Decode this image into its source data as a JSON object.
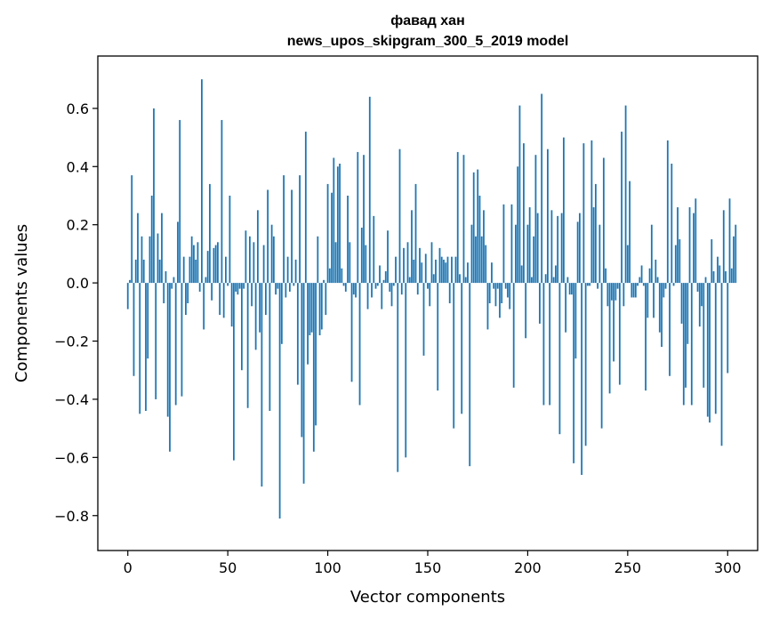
{
  "chart_data": {
    "type": "bar",
    "title_line1": "фавад хан",
    "title_line2": "news_upos_skipgram_300_5_2019 model",
    "xlabel": "Vector components",
    "ylabel": "Components values",
    "xlim": [
      -15,
      315
    ],
    "ylim": [
      -0.92,
      0.78
    ],
    "x_ticks": [
      0,
      50,
      100,
      150,
      200,
      250,
      300
    ],
    "x_tick_labels": [
      "0",
      "50",
      "100",
      "150",
      "200",
      "250",
      "300"
    ],
    "y_ticks": [
      -0.8,
      -0.6,
      -0.4,
      -0.2,
      0.0,
      0.2,
      0.4,
      0.6
    ],
    "y_tick_labels": [
      "−0.8",
      "−0.6",
      "−0.4",
      "−0.2",
      "0.0",
      "0.2",
      "0.4",
      "0.6"
    ],
    "bar_color": "#1f77b4",
    "grid": false,
    "values": [
      -0.09,
      0.01,
      0.37,
      -0.32,
      0.08,
      0.24,
      -0.45,
      0.16,
      0.08,
      -0.44,
      -0.26,
      0.16,
      0.3,
      0.6,
      -0.4,
      0.17,
      0.08,
      0.24,
      -0.07,
      0.04,
      -0.46,
      -0.58,
      -0.02,
      0.02,
      -0.42,
      0.21,
      0.56,
      -0.39,
      0.09,
      -0.11,
      -0.07,
      0.09,
      0.16,
      0.13,
      0.08,
      0.14,
      -0.03,
      0.7,
      -0.16,
      0.02,
      0.11,
      0.34,
      -0.06,
      0.12,
      0.13,
      0.14,
      -0.11,
      0.56,
      -0.12,
      0.09,
      -0.01,
      0.3,
      -0.15,
      -0.61,
      -0.03,
      -0.04,
      -0.02,
      -0.3,
      -0.02,
      0.18,
      -0.43,
      0.16,
      -0.08,
      0.14,
      -0.23,
      0.25,
      -0.17,
      -0.7,
      0.13,
      -0.11,
      0.32,
      -0.44,
      0.2,
      0.16,
      -0.04,
      -0.02,
      -0.81,
      -0.21,
      0.37,
      -0.05,
      0.09,
      -0.03,
      0.32,
      -0.01,
      0.08,
      -0.35,
      0.37,
      -0.53,
      -0.69,
      0.52,
      -0.28,
      -0.18,
      -0.17,
      -0.58,
      -0.49,
      0.16,
      -0.18,
      -0.16,
      0.01,
      -0.11,
      0.34,
      0.05,
      0.31,
      0.43,
      0.14,
      0.4,
      0.41,
      0.05,
      -0.01,
      -0.03,
      0.3,
      0.14,
      -0.34,
      -0.04,
      -0.05,
      0.45,
      -0.42,
      0.19,
      0.44,
      0.13,
      -0.09,
      0.64,
      -0.05,
      0.23,
      -0.02,
      -0.01,
      0.06,
      -0.09,
      0.01,
      0.04,
      0.18,
      -0.03,
      -0.08,
      -0.01,
      0.09,
      -0.65,
      0.46,
      -0.04,
      0.12,
      -0.6,
      0.14,
      0.02,
      0.25,
      0.08,
      0.34,
      -0.04,
      0.12,
      0.07,
      -0.25,
      0.1,
      -0.02,
      -0.08,
      0.14,
      0.03,
      0.08,
      -0.37,
      0.12,
      0.09,
      0.08,
      0.07,
      0.09,
      -0.07,
      0.09,
      -0.5,
      0.09,
      0.45,
      0.03,
      -0.45,
      0.44,
      0.02,
      0.07,
      -0.63,
      0.2,
      0.38,
      0.16,
      0.39,
      0.3,
      0.16,
      0.25,
      0.13,
      -0.16,
      -0.07,
      0.07,
      -0.02,
      -0.08,
      -0.02,
      -0.12,
      -0.07,
      0.27,
      -0.02,
      -0.05,
      -0.09,
      0.27,
      -0.36,
      0.2,
      0.4,
      0.61,
      0.06,
      0.48,
      -0.19,
      0.2,
      0.26,
      0.02,
      0.16,
      0.44,
      0.24,
      -0.14,
      0.65,
      -0.42,
      0.03,
      0.46,
      -0.42,
      0.25,
      0.02,
      0.06,
      0.23,
      -0.52,
      0.24,
      0.5,
      -0.17,
      0.02,
      -0.04,
      -0.04,
      -0.62,
      -0.26,
      0.21,
      0.24,
      -0.66,
      0.48,
      -0.56,
      -0.01,
      -0.01,
      0.49,
      0.26,
      0.34,
      -0.02,
      0.2,
      -0.5,
      0.43,
      0.05,
      -0.08,
      -0.38,
      -0.06,
      -0.27,
      -0.06,
      -0.02,
      -0.35,
      0.52,
      -0.08,
      0.61,
      0.13,
      0.35,
      -0.05,
      -0.05,
      -0.05,
      -0.01,
      0.02,
      0.06,
      -0.01,
      -0.37,
      -0.12,
      0.05,
      0.2,
      -0.12,
      0.08,
      0.02,
      -0.17,
      -0.22,
      -0.05,
      -0.02,
      0.49,
      -0.32,
      0.41,
      -0.01,
      0.13,
      0.26,
      0.15,
      -0.14,
      -0.42,
      -0.36,
      -0.21,
      0.26,
      -0.42,
      0.24,
      0.29,
      -0.03,
      -0.15,
      -0.08,
      -0.36,
      0.02,
      -0.46,
      -0.48,
      0.15,
      0.04,
      -0.45,
      0.09,
      0.06,
      -0.56,
      0.25,
      0.04,
      -0.31,
      0.29,
      0.05,
      0.16,
      0.2
    ]
  }
}
